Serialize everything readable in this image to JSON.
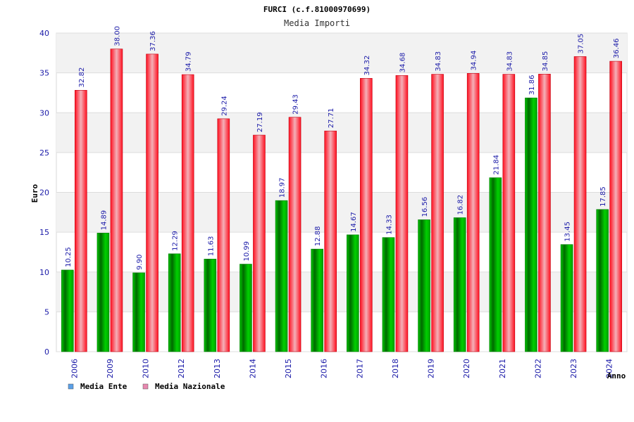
{
  "chart_data": {
    "type": "bar",
    "title": "FURCI (c.f.81000970699)",
    "subtitle": "Media Importi",
    "ylabel": "Euro",
    "xlabel": "Anno",
    "ylim": [
      0,
      40
    ],
    "yticks": [
      "0",
      "5",
      "10",
      "15",
      "20",
      "25",
      "30",
      "35",
      "40"
    ],
    "ytick_values": [
      0,
      5,
      10,
      15,
      20,
      25,
      30,
      35,
      40
    ],
    "grid": "horizontal bands",
    "legend_position": "bottom-left",
    "categories": [
      "2006",
      "2009",
      "2010",
      "2012",
      "2013",
      "2014",
      "2015",
      "2016",
      "2017",
      "2018",
      "2019",
      "2020",
      "2021",
      "2022",
      "2023",
      "2024"
    ],
    "series": [
      {
        "name": "Media Ente",
        "color": "#00b000",
        "legend_color": "#5aa0e8",
        "values": [
          10.25,
          14.89,
          9.9,
          12.29,
          11.63,
          10.99,
          18.97,
          12.88,
          14.67,
          14.33,
          16.56,
          16.82,
          21.84,
          31.86,
          13.45,
          17.85
        ],
        "labels": [
          "10.25",
          "14.89",
          "9.90",
          "12.29",
          "11.63",
          "10.99",
          "18.97",
          "12.88",
          "14.67",
          "14.33",
          "16.56",
          "16.82",
          "21.84",
          "31.86",
          "13.45",
          "17.85"
        ]
      },
      {
        "name": "Media Nazionale",
        "color": "#e8202a",
        "legend_color": "#e888b0",
        "values": [
          32.82,
          38.0,
          37.36,
          34.79,
          29.24,
          27.19,
          29.43,
          27.71,
          34.32,
          34.68,
          34.83,
          34.94,
          34.83,
          34.85,
          37.05,
          36.46
        ],
        "labels": [
          "32.82",
          "38.00",
          "37.36",
          "34.79",
          "29.24",
          "27.19",
          "29.43",
          "27.71",
          "34.32",
          "34.68",
          "34.83",
          "34.94",
          "34.83",
          "34.85",
          "37.05",
          "36.46"
        ]
      }
    ]
  }
}
